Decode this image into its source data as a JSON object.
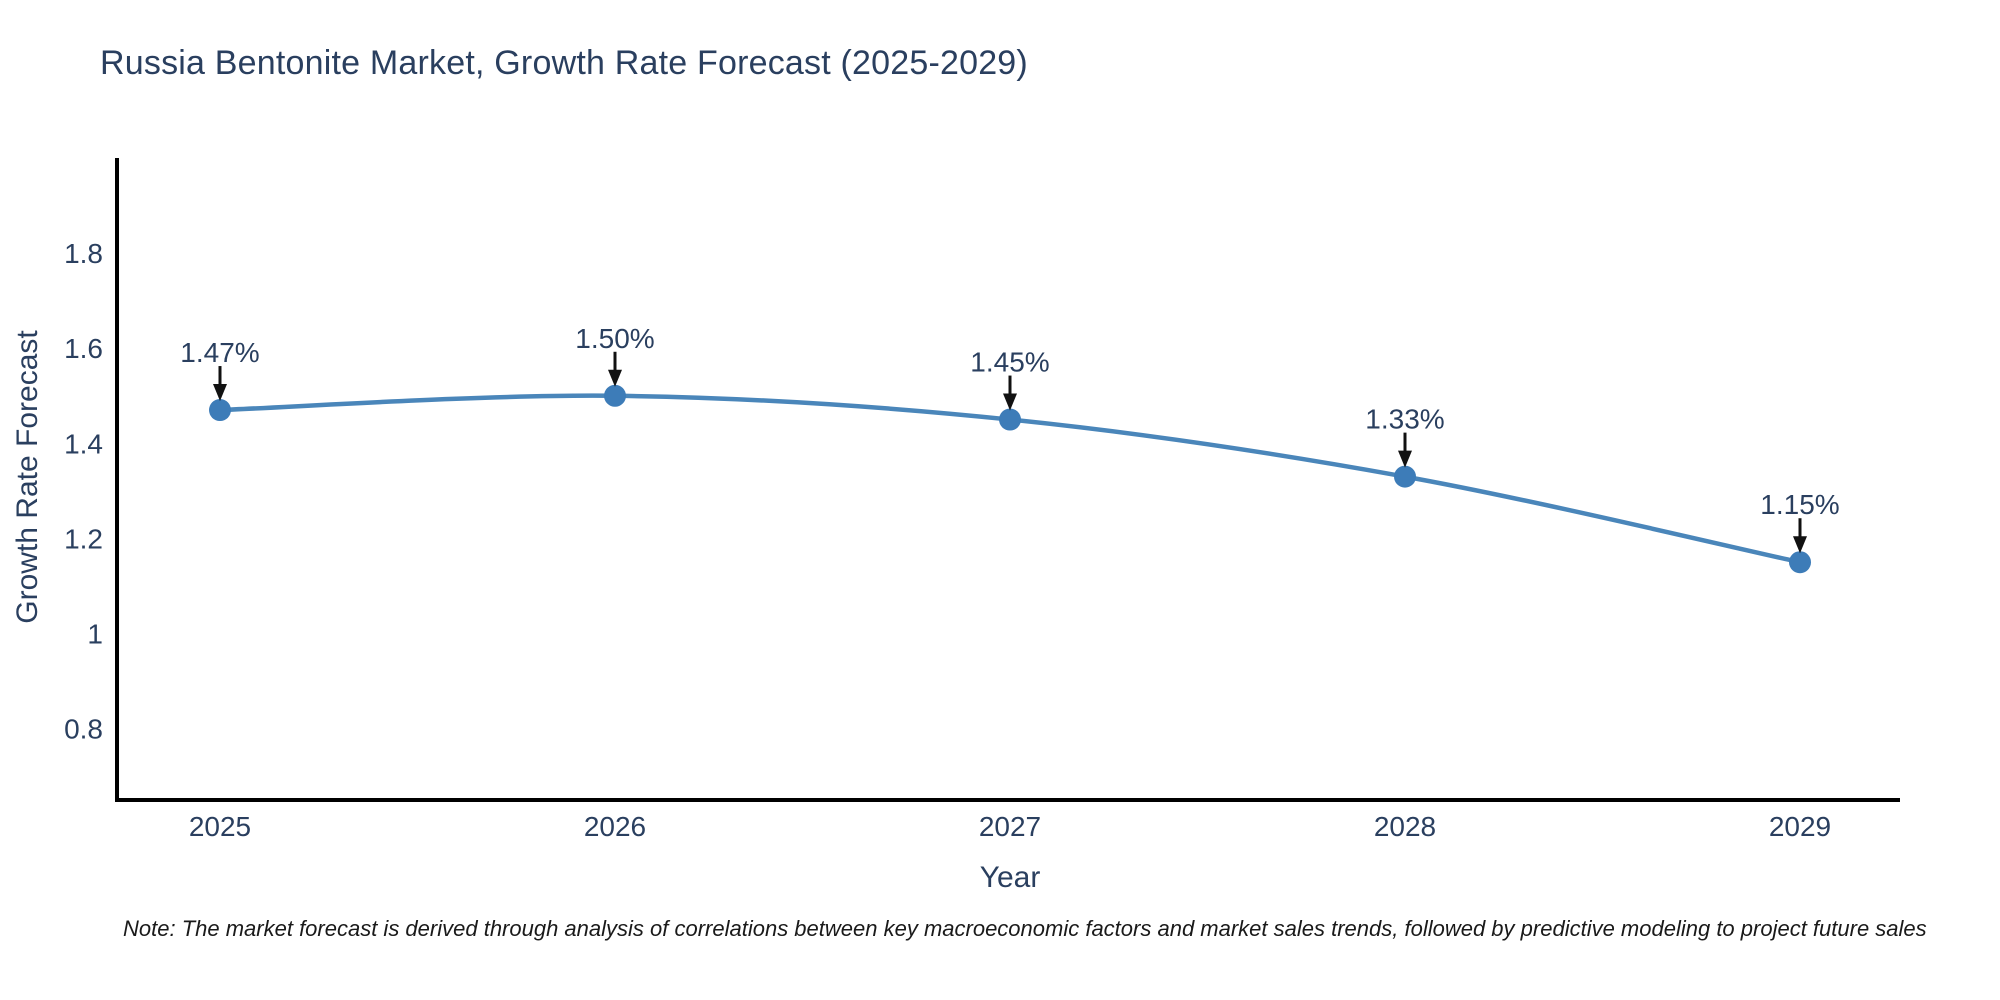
{
  "chart_data": {
    "type": "line",
    "title": "Russia Bentonite Market, Growth Rate Forecast (2025-2029)",
    "xlabel": "Year",
    "ylabel": "Growth Rate Forecast",
    "categories": [
      "2025",
      "2026",
      "2027",
      "2028",
      "2029"
    ],
    "series": [
      {
        "name": "Growth Rate Forecast",
        "values": [
          1.47,
          1.5,
          1.45,
          1.33,
          1.15
        ]
      }
    ],
    "point_labels": [
      "1.47%",
      "1.50%",
      "1.45%",
      "1.33%",
      "1.15%"
    ],
    "ytick_labels": [
      "0.8",
      "1",
      "1.2",
      "1.4",
      "1.6",
      "1.8"
    ],
    "yticks": [
      0.8,
      1,
      1.2,
      1.4,
      1.6,
      1.8
    ],
    "ylim": [
      0.65,
      2.0
    ],
    "grid": false,
    "legend": "none",
    "line_shape": "spline",
    "line_color": "#4a86ba",
    "marker_color": "#3d7cb8",
    "axis_color": "#000000",
    "text_color": "#2a3f5f",
    "arrow_color": "#111111"
  },
  "note": "Note: The market forecast is derived through analysis of correlations between key macroeconomic factors and market sales trends, followed by predictive modeling to project future sales"
}
